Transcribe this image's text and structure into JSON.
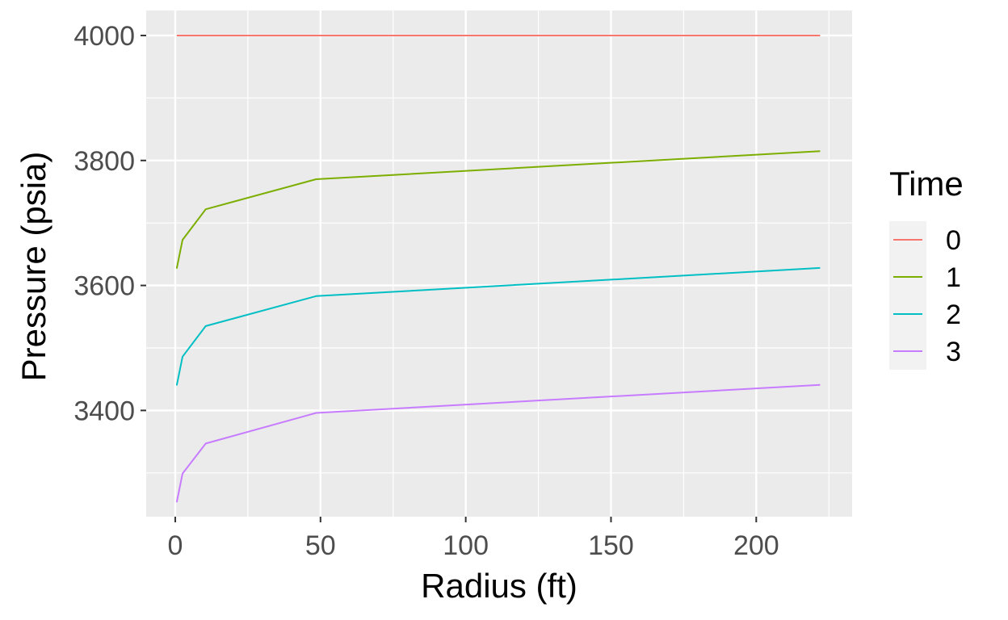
{
  "chart_data": {
    "type": "line",
    "xlabel": "Radius (ft)",
    "ylabel": "Pressure (psia)",
    "xlim": [
      -10,
      233
    ],
    "ylim": [
      3230,
      4040
    ],
    "xticks": [
      0,
      50,
      100,
      150,
      200
    ],
    "xtick_labels": [
      "0",
      "50",
      "100",
      "150",
      "200"
    ],
    "yticks": [
      3400,
      3600,
      3800,
      4000
    ],
    "ytick_labels": [
      "3400",
      "3600",
      "3800",
      "4000"
    ],
    "grid": true,
    "legend": {
      "title": "Time",
      "position": "right"
    },
    "series": [
      {
        "name": "0",
        "color": "#F8766D",
        "points": [
          [
            0.5,
            4000
          ],
          [
            2.5,
            4000
          ],
          [
            10.5,
            4000
          ],
          [
            48.5,
            4000
          ],
          [
            222,
            4000
          ]
        ]
      },
      {
        "name": "1",
        "color": "#7CAE00",
        "points": [
          [
            0.5,
            3627
          ],
          [
            2.5,
            3673
          ],
          [
            10.5,
            3722
          ],
          [
            48.5,
            3770
          ],
          [
            222,
            3815
          ]
        ]
      },
      {
        "name": "2",
        "color": "#00BFC4",
        "points": [
          [
            0.5,
            3440
          ],
          [
            2.5,
            3486
          ],
          [
            10.5,
            3535
          ],
          [
            48.5,
            3583
          ],
          [
            222,
            3628
          ]
        ]
      },
      {
        "name": "3",
        "color": "#C77CFF",
        "points": [
          [
            0.5,
            3253
          ],
          [
            2.5,
            3299
          ],
          [
            10.5,
            3347
          ],
          [
            48.5,
            3396
          ],
          [
            222,
            3441
          ]
        ]
      }
    ]
  }
}
